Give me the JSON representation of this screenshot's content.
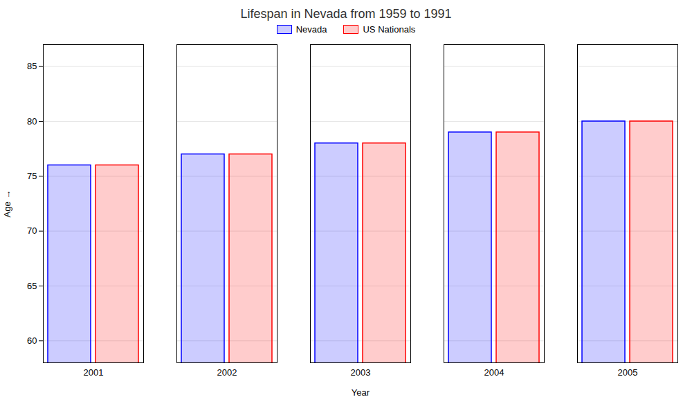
{
  "chart_data": {
    "type": "bar",
    "title": "Lifespan in Nevada from 1959 to 1991",
    "xlabel": "Year",
    "ylabel": "Age",
    "categories": [
      "2001",
      "2002",
      "2003",
      "2004",
      "2005"
    ],
    "series": [
      {
        "name": "Nevada",
        "color": "#0000ff",
        "values": [
          76,
          77,
          78,
          79,
          80
        ]
      },
      {
        "name": "US Nationals",
        "color": "#ff0000",
        "values": [
          76,
          77,
          78,
          79,
          80
        ]
      }
    ],
    "ylim": [
      58,
      87
    ],
    "yticks": [
      60,
      65,
      70,
      75,
      80,
      85
    ],
    "grid": true,
    "legend": "top"
  }
}
